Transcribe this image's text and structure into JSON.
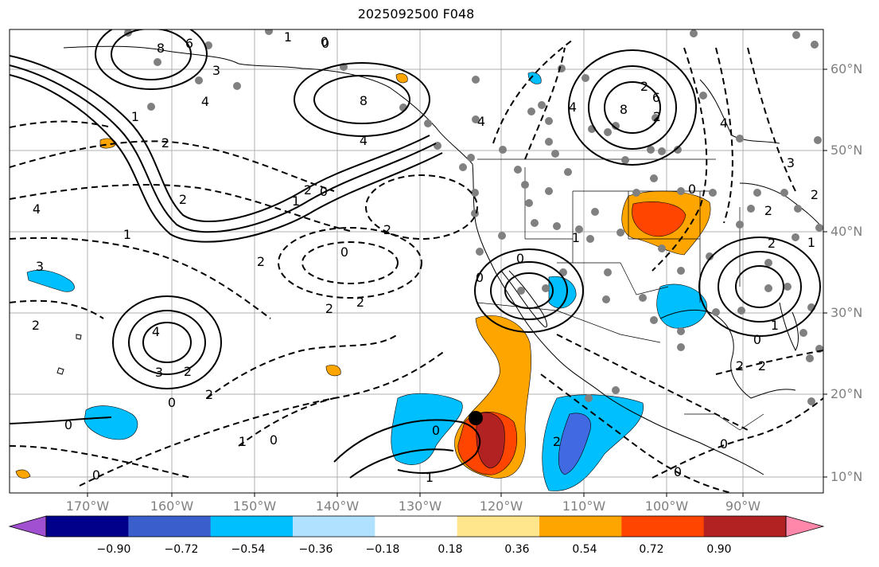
{
  "title": "2025092500 F048",
  "lat_labels": [
    "60°N",
    "50°N",
    "40°N",
    "30°N",
    "20°N",
    "10°N"
  ],
  "lon_labels": [
    "170°W",
    "160°W",
    "150°W",
    "140°W",
    "130°W",
    "120°W",
    "110°W",
    "100°W",
    "90°W"
  ],
  "colorbar": {
    "colors": [
      "#a050d0",
      "#00008b",
      "#3a5fcd",
      "#00bfff",
      "#b0e2ff",
      "#ffffff",
      "#ffe68c",
      "#ffa500",
      "#ff4500",
      "#b22222",
      "#ff88aa"
    ],
    "tick_labels": [
      "−0.90",
      "−0.72",
      "−0.54",
      "−0.36",
      "−0.18",
      "0.18",
      "0.36",
      "0.54",
      "0.72",
      "0.90"
    ]
  },
  "contour_labels": [
    "8",
    "6",
    "4",
    "1",
    "0",
    "8",
    "4",
    "2",
    "2",
    "4",
    "8",
    "2",
    "6",
    "4",
    "2",
    "1",
    "4",
    "3",
    "0",
    "0",
    "3",
    "2",
    "0",
    "2",
    "2",
    "2",
    "2",
    "0",
    "4",
    "2",
    "0",
    "2",
    "3",
    "4",
    "1",
    "0",
    "1",
    "0",
    "2",
    "2",
    "1",
    "0",
    "0",
    "0",
    "2",
    "0",
    "1",
    "0",
    "3",
    "2",
    "1",
    "2",
    "2",
    "1",
    "0",
    "1",
    "2",
    "0"
  ],
  "legend_colors": {
    "neg_strong": "#4169e1",
    "neg": "#00bfff",
    "pos": "#ffa500",
    "pos_strong": "#ff4500",
    "pos_max": "#b22222"
  }
}
